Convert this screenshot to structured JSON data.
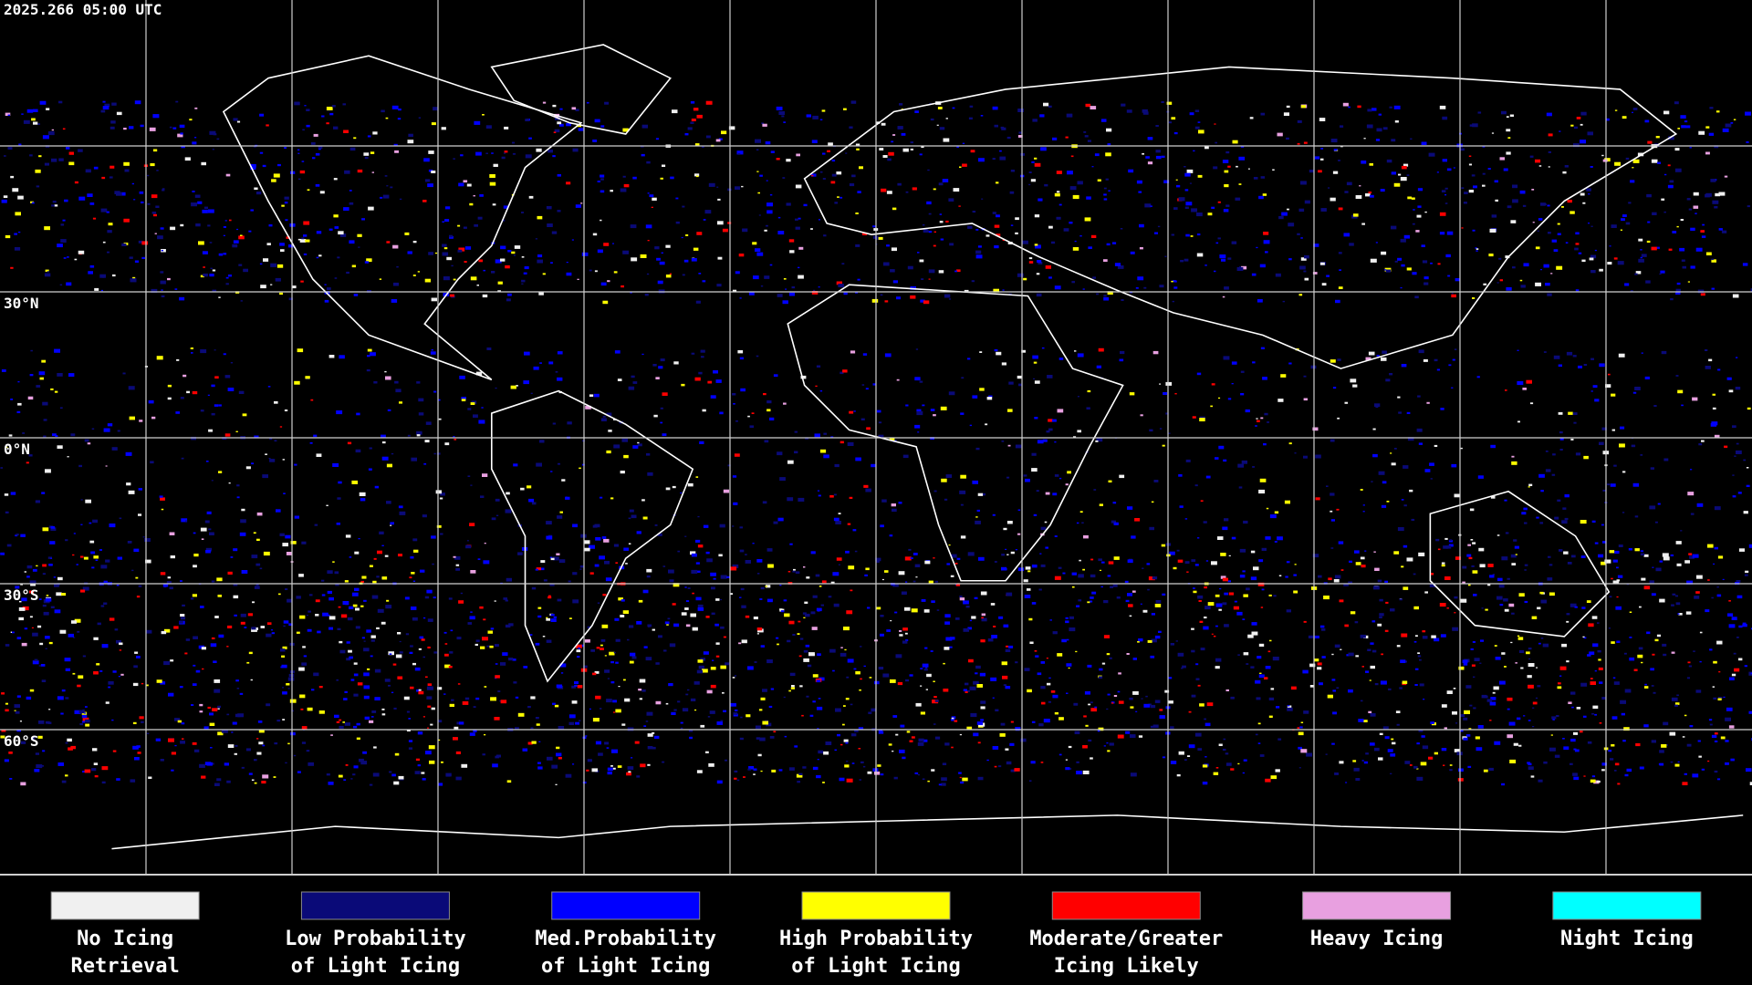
{
  "header": {
    "timestamp": "2025.266 05:00 UTC"
  },
  "map": {
    "latitude_labels": [
      "30°N",
      "0°N",
      "30°S",
      "60°S"
    ]
  },
  "legend": [
    {
      "lines": [
        "No Icing",
        "Retrieval"
      ],
      "color": "#f0f0f0"
    },
    {
      "lines": [
        "Low Probability",
        "of Light Icing"
      ],
      "color": "#0a0a78"
    },
    {
      "lines": [
        "Med.Probability",
        "of Light Icing"
      ],
      "color": "#0000ff"
    },
    {
      "lines": [
        "High Probability",
        "of Light Icing"
      ],
      "color": "#ffff00"
    },
    {
      "lines": [
        "Moderate/Greater",
        "Icing Likely"
      ],
      "color": "#ff0000"
    },
    {
      "lines": [
        "Heavy Icing"
      ],
      "color": "#e8a0e0"
    },
    {
      "lines": [
        "Night Icing"
      ],
      "color": "#00ffff"
    }
  ]
}
